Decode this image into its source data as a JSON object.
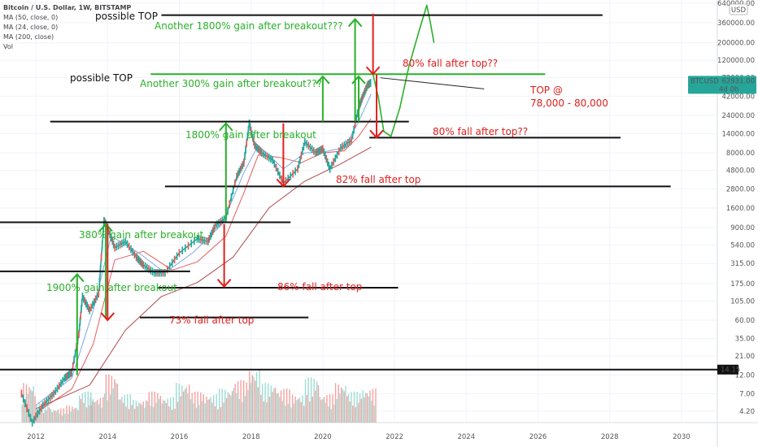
{
  "header": {
    "title": "Bitcoin / U.S. Dollar, 1W, BITSTAMP",
    "ma50": "MA (50, close, 0)",
    "ma24": "MA (24, close, 0)",
    "ma200": "MA (200, close)",
    "vol": "Vol"
  },
  "currency": "USD",
  "price_badge": {
    "symbol": "BTCUSD",
    "price": "62931.00",
    "time": "4d 0h"
  },
  "support_badge": "14.15",
  "colors": {
    "price_up": "#26a69a",
    "price_down": "#ef5350",
    "ma50": "#e35d5d",
    "ma24": "#7aa7e6",
    "ma200": "#b24a4a",
    "annotation_green": "#2ab02a",
    "annotation_red": "#e0201d",
    "level_line": "#111111",
    "badge": "#26a69a"
  },
  "annotations": {
    "possible_top_1": "possible TOP",
    "possible_top_2": "possible TOP",
    "gain_1800_2": "Another 1800% gain after breakout???",
    "gain_300": "Another 300% gain after breakout???",
    "fall_80_a": "80% fall after top??",
    "top_label": "TOP @",
    "top_range": "78,000 - 80,000",
    "fall_80_b": "80% fall after top??",
    "gain_1800": "1800% gain after breakout",
    "fall_82": "82% fall after top",
    "gain_380": "380% gain after breakout",
    "fall_86": "86% fall after top",
    "gain_1900": "1900% gain after breakout",
    "fall_73": "73% fall after top"
  },
  "chart_data": {
    "type": "line",
    "title": "Bitcoin / U.S. Dollar, 1W, BITSTAMP",
    "x_ticks": [
      "2012",
      "2014",
      "2016",
      "2018",
      "2020",
      "2022",
      "2024",
      "2026",
      "2028",
      "2030"
    ],
    "xlim": [
      2011.0,
      2031.0
    ],
    "y_scale": "log",
    "y_ticks": [
      4.2,
      7.0,
      12.0,
      21.0,
      35.0,
      60.0,
      105.0,
      175.0,
      315.0,
      540.0,
      900.0,
      1600.0,
      2800.0,
      4800.0,
      8000.0,
      14000.0,
      24000.0,
      42000.0,
      72000.0,
      120000.0,
      200000.0,
      360000.0,
      640000.0
    ],
    "ylim": [
      3.0,
      700000
    ],
    "series": [
      {
        "name": "BTCUSD",
        "x": [
          2011.6,
          2011.9,
          2012.2,
          2012.5,
          2012.8,
          2013.0,
          2013.2,
          2013.3,
          2013.5,
          2013.75,
          2013.9,
          2014.0,
          2014.2,
          2014.5,
          2014.8,
          2015.0,
          2015.3,
          2015.6,
          2016.0,
          2016.5,
          2016.8,
          2017.0,
          2017.3,
          2017.6,
          2017.8,
          2017.95,
          2018.1,
          2018.3,
          2018.6,
          2018.9,
          2019.3,
          2019.5,
          2019.8,
          2020.0,
          2020.2,
          2020.5,
          2020.8,
          2021.0,
          2021.1,
          2021.25,
          2021.35
        ],
        "values": [
          7,
          3,
          5,
          7,
          11,
          13,
          40,
          120,
          80,
          130,
          1100,
          900,
          500,
          600,
          380,
          300,
          240,
          240,
          430,
          650,
          600,
          950,
          1200,
          4000,
          6000,
          19000,
          10000,
          8000,
          6500,
          3300,
          5000,
          11000,
          8000,
          9000,
          5000,
          9300,
          11500,
          30000,
          40000,
          58000,
          62931
        ]
      },
      {
        "name": "MA (50, close, 0)",
        "x": [
          2012.0,
          2013.0,
          2013.6,
          2014.2,
          2015.0,
          2015.8,
          2016.5,
          2017.3,
          2017.8,
          2018.2,
          2018.8,
          2019.4,
          2020.0,
          2020.6,
          2021.0,
          2021.35
        ],
        "values": [
          4,
          8,
          30,
          350,
          450,
          260,
          330,
          700,
          2500,
          7500,
          7000,
          6000,
          8000,
          8500,
          13000,
          22000
        ]
      },
      {
        "name": "MA (24, close, 0)",
        "x": [
          2012.0,
          2013.0,
          2013.6,
          2014.1,
          2014.9,
          2015.6,
          2016.4,
          2017.2,
          2017.8,
          2018.2,
          2018.9,
          2019.5,
          2020.0,
          2020.6,
          2021.0,
          2021.35
        ],
        "values": [
          5,
          11,
          80,
          700,
          420,
          240,
          440,
          1000,
          4500,
          10000,
          5000,
          8000,
          8200,
          9300,
          20000,
          45000
        ]
      },
      {
        "name": "MA (200, close)",
        "x": [
          2012.0,
          2013.5,
          2014.5,
          2015.5,
          2016.5,
          2017.5,
          2018.5,
          2019.5,
          2020.5,
          2021.35
        ],
        "values": [
          4.5,
          9,
          45,
          120,
          180,
          380,
          1600,
          3500,
          5800,
          9500
        ]
      },
      {
        "name": "projection",
        "x": [
          2021.4,
          2021.55,
          2021.7,
          2021.9,
          2022.15,
          2022.4,
          2022.7,
          2022.9,
          2023.0,
          2023.1
        ],
        "values": [
          80000,
          40000,
          15000,
          13000,
          30000,
          100000,
          300000,
          600000,
          360000,
          200000
        ]
      }
    ],
    "volume": {
      "x": [
        2011.6,
        2012.0,
        2012.4,
        2012.8,
        2013.2,
        2013.5,
        2013.9,
        2014.3,
        2014.7,
        2015.1,
        2015.5,
        2015.9,
        2016.3,
        2016.7,
        2017.1,
        2017.5,
        2017.9,
        2018.3,
        2018.7,
        2019.1,
        2019.5,
        2019.9,
        2020.3,
        2020.7,
        2021.1
      ],
      "values": [
        0.7,
        0.35,
        0.25,
        0.3,
        0.55,
        0.45,
        0.85,
        0.5,
        0.4,
        0.55,
        0.45,
        0.7,
        0.55,
        0.5,
        0.6,
        0.75,
        0.95,
        0.7,
        0.6,
        0.5,
        0.8,
        0.5,
        0.7,
        0.55,
        0.6
      ]
    }
  }
}
